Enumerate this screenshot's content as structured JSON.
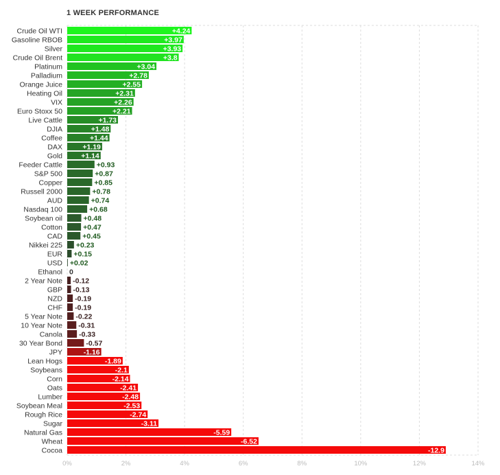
{
  "chart_data": {
    "type": "bar",
    "orientation": "horizontal",
    "title": "1 WEEK PERFORMANCE",
    "xlim": [
      0,
      14
    ],
    "grid": true,
    "categories": [
      "Crude Oil WTI",
      "Gasoline RBOB",
      "Silver",
      "Crude Oil Brent",
      "Platinum",
      "Palladium",
      "Orange Juice",
      "Heating Oil",
      "VIX",
      "Euro Stoxx 50",
      "Live Cattle",
      "DJIA",
      "Coffee",
      "DAX",
      "Gold",
      "Feeder Cattle",
      "S&P 500",
      "Copper",
      "Russell 2000",
      "AUD",
      "Nasdaq 100",
      "Soybean oil",
      "Cotton",
      "CAD",
      "Nikkei 225",
      "EUR",
      "USD",
      "Ethanol",
      "2 Year Note",
      "GBP",
      "NZD",
      "CHF",
      "5 Year Note",
      "10 Year Note",
      "Canola",
      "30 Year Bond",
      "JPY",
      "Lean Hogs",
      "Soybeans",
      "Corn",
      "Oats",
      "Lumber",
      "Soybean Meal",
      "Rough Rice",
      "Sugar",
      "Natural Gas",
      "Wheat",
      "Cocoa"
    ],
    "values": [
      4.24,
      3.97,
      3.93,
      3.8,
      3.04,
      2.78,
      2.55,
      2.31,
      2.26,
      2.21,
      1.73,
      1.48,
      1.44,
      1.19,
      1.14,
      0.93,
      0.87,
      0.85,
      0.78,
      0.74,
      0.68,
      0.48,
      0.47,
      0.45,
      0.23,
      0.15,
      0.02,
      0,
      -0.12,
      -0.13,
      -0.19,
      -0.19,
      -0.22,
      -0.31,
      -0.33,
      -0.57,
      -1.16,
      -1.89,
      -2.1,
      -2.14,
      -2.41,
      -2.48,
      -2.53,
      -2.74,
      -3.11,
      -5.59,
      -6.52,
      -12.9
    ],
    "value_labels": [
      "+4.24",
      "+3.97",
      "+3.93",
      "+3.8",
      "+3.04",
      "+2.78",
      "+2.55",
      "+2.31",
      "+2.26",
      "+2.21",
      "+1.73",
      "+1.48",
      "+1.44",
      "+1.19",
      "+1.14",
      "+0.93",
      "+0.87",
      "+0.85",
      "+0.78",
      "+0.74",
      "+0.68",
      "+0.48",
      "+0.47",
      "+0.45",
      "+0.23",
      "+0.15",
      "+0.02",
      "0",
      "-0.12",
      "-0.13",
      "-0.19",
      "-0.19",
      "-0.22",
      "-0.31",
      "-0.33",
      "-0.57",
      "-1.16",
      "-1.89",
      "-2.1",
      "-2.14",
      "-2.41",
      "-2.48",
      "-2.53",
      "-2.74",
      "-3.11",
      "-5.59",
      "-6.52",
      "-12.9"
    ],
    "x_ticks": [
      "0%",
      "2%",
      "4%",
      "6%",
      "8%",
      "10%",
      "12%",
      "14%"
    ]
  }
}
